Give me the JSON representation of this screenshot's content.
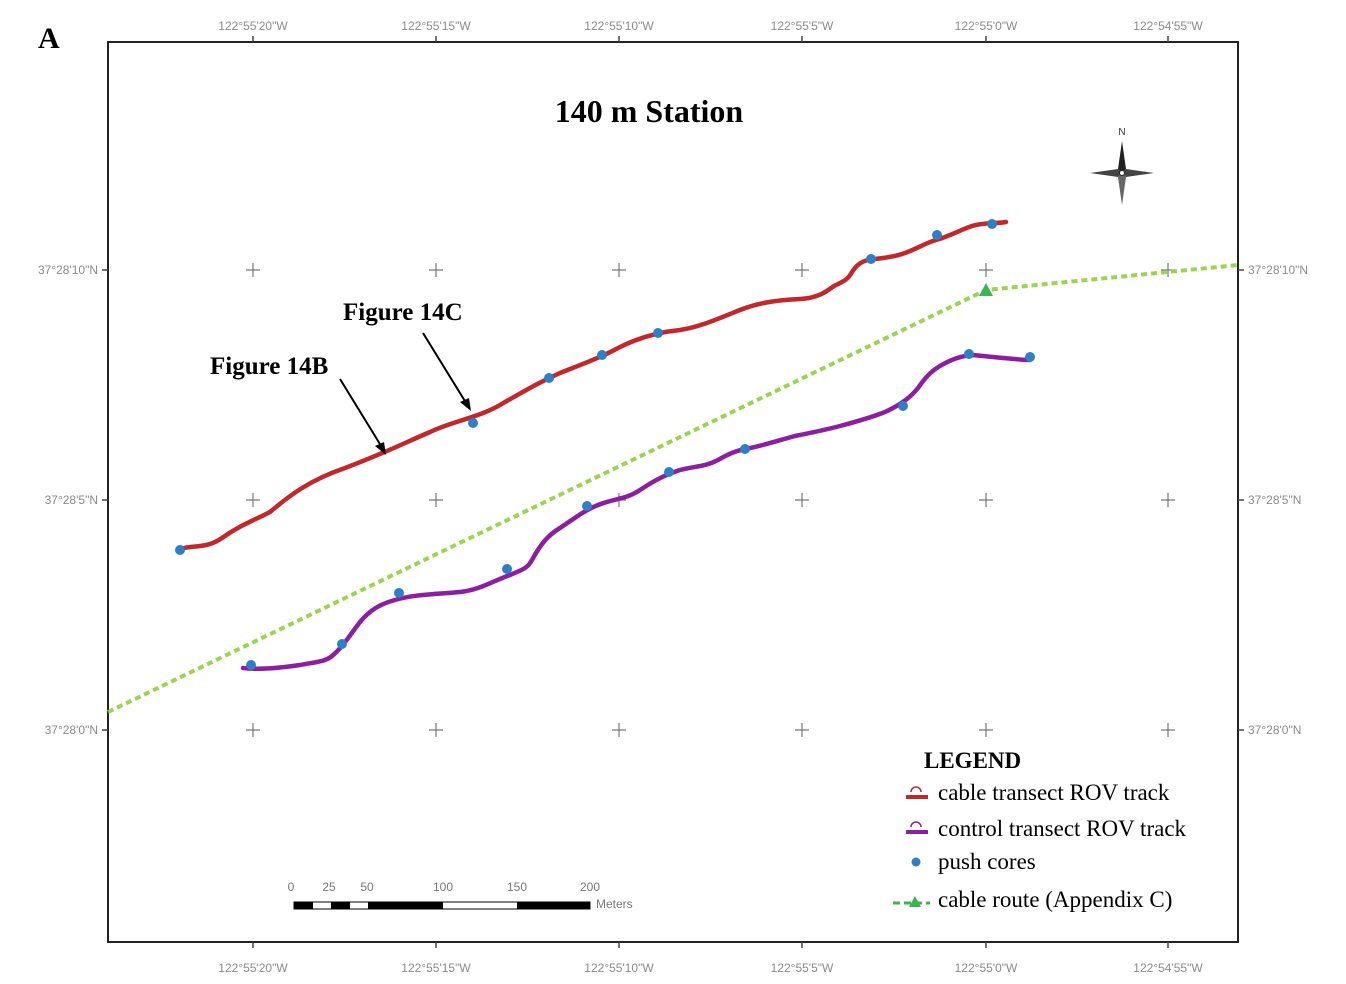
{
  "panel_label": "A",
  "title": "140 m Station",
  "longitude_labels": [
    "122°55'20\"W",
    "122°55'15\"W",
    "122°55'10\"W",
    "122°55'5\"W",
    "122°55'0\"W",
    "122°54'55\"W"
  ],
  "latitude_labels": [
    "37°28'10\"N",
    "37°28'5\"N",
    "37°28'0\"N"
  ],
  "north_label": "N",
  "callouts": {
    "fig14b": "Figure 14B",
    "fig14c": "Figure 14C"
  },
  "legend": {
    "heading": "LEGEND",
    "items": [
      {
        "label": "cable transect ROV track",
        "color": "#c0282b"
      },
      {
        "label": "control transect ROV track",
        "color": "#8b1fa0"
      },
      {
        "label": "push cores",
        "color": "#2e7fc3"
      },
      {
        "label": "cable route (Appendix C)",
        "color": "#3fb34f"
      }
    ]
  },
  "scale_bar": {
    "ticks": [
      "0",
      "25",
      "50",
      "100",
      "150",
      "200"
    ],
    "unit": "Meters"
  },
  "colors": {
    "cable_track": "#c0282b",
    "control_track": "#8b1fa0",
    "push_core": "#2e7fc3",
    "cable_route": "#8fcf3f",
    "cable_route_marker": "#3fb34f"
  }
}
